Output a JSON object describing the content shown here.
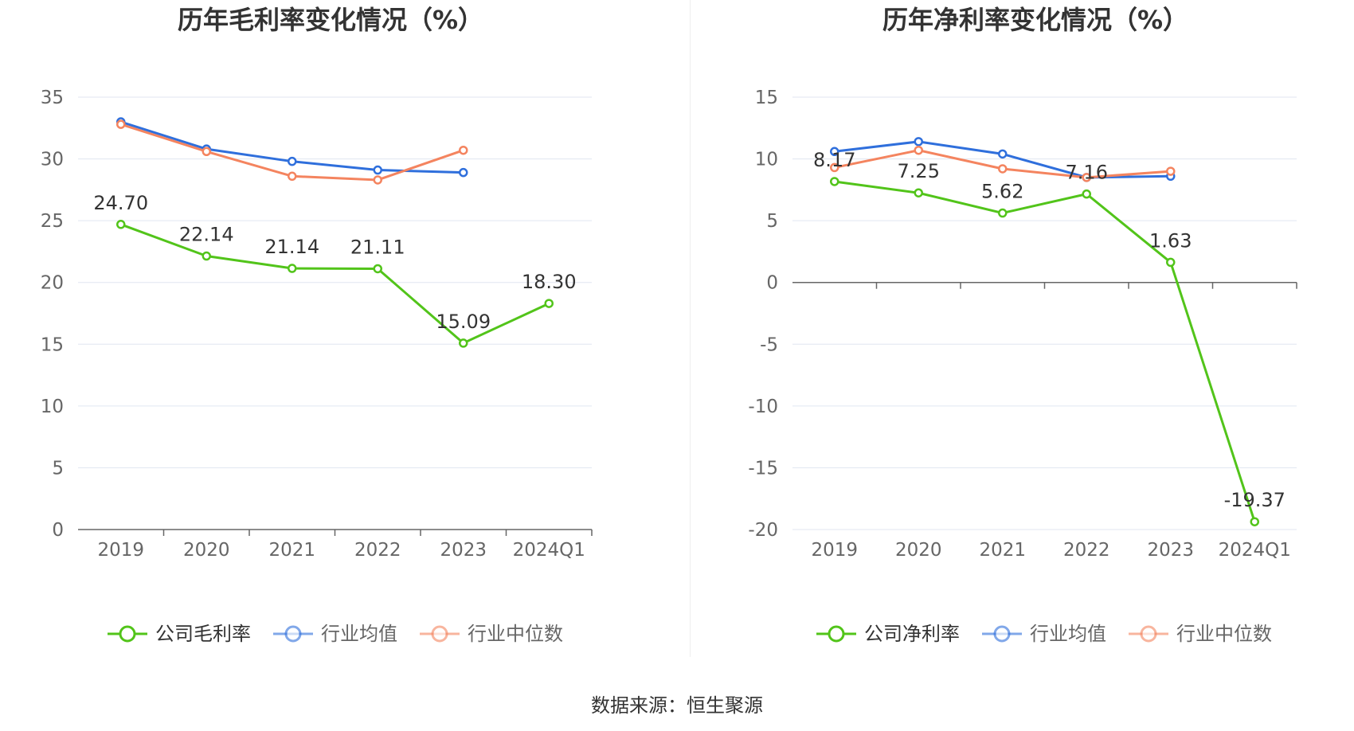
{
  "source_text": "数据来源：恒生聚源",
  "colors": {
    "company": "#52c41a",
    "industry_avg": "#2f6fdc",
    "industry_median": "#f4845f"
  },
  "chart_data": [
    {
      "type": "line",
      "title": "历年毛利率变化情况（%）",
      "categories": [
        "2019",
        "2020",
        "2021",
        "2022",
        "2023",
        "2024Q1"
      ],
      "yticks": [
        "35",
        "30",
        "25",
        "20",
        "15",
        "10",
        "5",
        "0"
      ],
      "ylim": [
        0,
        35
      ],
      "grid": true,
      "legend_position": "bottom",
      "series": [
        {
          "name": "公司毛利率",
          "values": [
            24.7,
            22.14,
            21.14,
            21.11,
            15.09,
            18.3
          ],
          "labels": [
            "24.70",
            "22.14",
            "21.14",
            "21.11",
            "15.09",
            "18.30"
          ]
        },
        {
          "name": "行业均值",
          "values": [
            33.0,
            30.8,
            29.8,
            29.1,
            28.9,
            null
          ]
        },
        {
          "name": "行业中位数",
          "values": [
            32.8,
            30.6,
            28.6,
            28.3,
            30.7,
            null
          ]
        }
      ]
    },
    {
      "type": "line",
      "title": "历年净利率变化情况（%）",
      "categories": [
        "2019",
        "2020",
        "2021",
        "2022",
        "2023",
        "2024Q1"
      ],
      "yticks": [
        "15",
        "10",
        "5",
        "0",
        "-5",
        "-10",
        "-15",
        "-20"
      ],
      "ylim": [
        -20,
        15
      ],
      "grid": true,
      "legend_position": "bottom",
      "series": [
        {
          "name": "公司净利率",
          "values": [
            8.17,
            7.25,
            5.62,
            7.16,
            1.63,
            -19.37
          ],
          "labels": [
            "8.17",
            "7.25",
            "5.62",
            "7.16",
            "1.63",
            "-19.37"
          ]
        },
        {
          "name": "行业均值",
          "values": [
            10.6,
            11.4,
            10.4,
            8.5,
            8.6,
            null
          ]
        },
        {
          "name": "行业中位数",
          "values": [
            9.3,
            10.7,
            9.2,
            8.5,
            9.0,
            null
          ]
        }
      ]
    }
  ]
}
